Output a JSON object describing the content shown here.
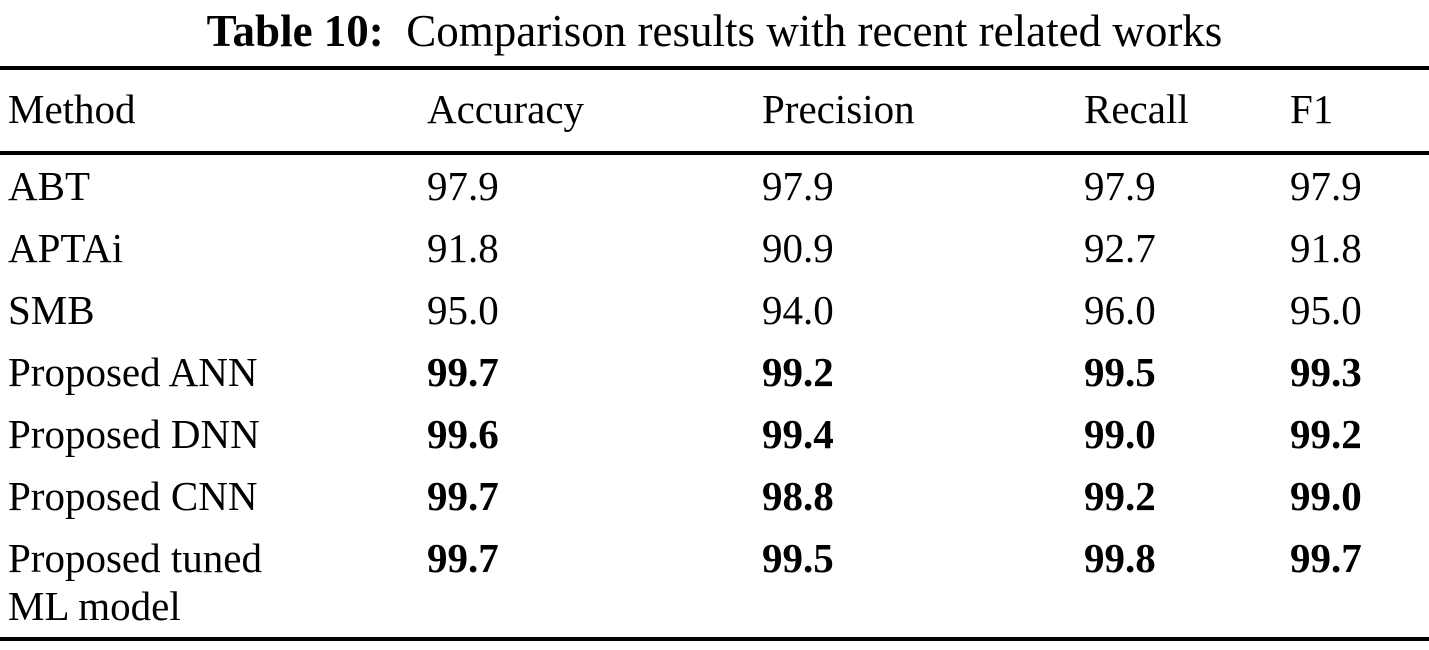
{
  "caption": {
    "label": "Table 10:",
    "text": "Comparison results with recent related works"
  },
  "table": {
    "columns": [
      "Method",
      "Accuracy",
      "Precision",
      "Recall",
      "F1"
    ],
    "rows": [
      {
        "method": "ABT",
        "values": [
          "97.9",
          "97.9",
          "97.9",
          "97.9"
        ],
        "emphasized": false
      },
      {
        "method": "APTAi",
        "values": [
          "91.8",
          "90.9",
          "92.7",
          "91.8"
        ],
        "emphasized": false
      },
      {
        "method": "SMB",
        "values": [
          "95.0",
          "94.0",
          "96.0",
          "95.0"
        ],
        "emphasized": false
      },
      {
        "method": "Proposed ANN",
        "values": [
          "99.7",
          "99.2",
          "99.5",
          "99.3"
        ],
        "emphasized": true
      },
      {
        "method": "Proposed DNN",
        "values": [
          "99.6",
          "99.4",
          "99.0",
          "99.2"
        ],
        "emphasized": true
      },
      {
        "method": "Proposed CNN",
        "values": [
          "99.7",
          "98.8",
          "99.2",
          "99.0"
        ],
        "emphasized": true
      },
      {
        "method": "Proposed tuned ML model",
        "values": [
          "99.7",
          "99.5",
          "99.8",
          "99.7"
        ],
        "emphasized": true
      }
    ]
  },
  "colors": {
    "text": "#000000",
    "background": "#ffffff",
    "rule": "#000000"
  }
}
